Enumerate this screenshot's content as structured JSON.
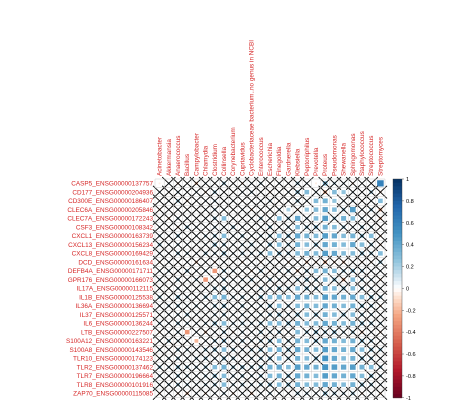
{
  "chart_data": {
    "type": "heatmap",
    "title": "",
    "columns": [
      "Acinetobacter",
      "Akkermansia",
      "Anaerococcus",
      "Bacillus",
      "Campylobacter",
      "Chlamydia",
      "Clostridium",
      "Collinsella",
      "Corynebacterium",
      "Cupriavidus",
      "Cyclobacteriaceae bacterium..no genus in NCBI",
      "Enterococcus",
      "Escherichia",
      "Finegoldia",
      "Gardnerella",
      "Klebsiella",
      "Peptoniphilus",
      "Prevotella",
      "Proteus",
      "Pseudomonas",
      "Shewanella",
      "Sphingomonas",
      "Staphylococcus",
      "Streptococcus",
      "Streptomyces"
    ],
    "rows": [
      "CASP5_ENSG00000137757",
      "CD177_ENSG00000204936",
      "CD300E_ENSG00000186407",
      "CLEC6A_ENSG00000205846",
      "CLEC7A_ENSG00000172243",
      "CSF3_ENSG00000108342",
      "CXCL1_ENSG00000163739",
      "CXCL13_ENSG00000156234",
      "CXCL8_ENSG00000169429",
      "DCD_ENSG00000161634",
      "DEFB4A_ENSG00000171711",
      "GPR176_ENSG00000166073",
      "IL17A_ENSG00000112115",
      "IL1B_ENSG00000125538",
      "IL36A_ENSG00000136694",
      "IL37_ENSG00000125571",
      "IL6_ENSG00000136244",
      "LTB_ENSG00000227507",
      "S100A12_ENSG00000163221",
      "S100A8_ENSG00000143546",
      "TLR10_ENSG00000174123",
      "TLR2_ENSG00000137462",
      "TLR7_ENSG00000196664",
      "TLR8_ENSG00000101916",
      "ZAP70_ENSG00000115085"
    ],
    "values": [
      [
        -0.05,
        0.1,
        -0.1,
        0.05,
        -0.15,
        0.1,
        -0.05,
        0.2,
        0.05,
        -0.1,
        0.1,
        0.15,
        -0.05,
        0.1,
        0.05,
        0.2,
        0.1,
        -0.05,
        0.3,
        0.15,
        0.1,
        -0.1,
        0.05,
        0.05,
        0.6
      ],
      [
        0.1,
        -0.05,
        0.15,
        0.05,
        0.1,
        -0.1,
        0.2,
        0.05,
        -0.05,
        0.1,
        0.15,
        0.05,
        -0.1,
        0.05,
        0.1,
        0.25,
        0.3,
        0.1,
        -0.2,
        0.3,
        0.25,
        0.1,
        0.05,
        0.2,
        -0.1
      ],
      [
        0.05,
        0.1,
        0.2,
        -0.1,
        0.05,
        0.1,
        0.15,
        0.05,
        0.1,
        -0.05,
        0.05,
        0.1,
        0.15,
        0.05,
        0.1,
        0.2,
        0.1,
        0.3,
        0.35,
        0.25,
        0.1,
        0.15,
        -0.05,
        0.1,
        0.3
      ],
      [
        -0.1,
        0.05,
        0.1,
        0.05,
        -0.05,
        0.1,
        0.15,
        0.1,
        0.05,
        0.1,
        -0.1,
        0.05,
        0.1,
        0.15,
        0.2,
        -0.1,
        0.25,
        0.3,
        0.4,
        0.3,
        0.2,
        0.45,
        0.1,
        0.2,
        -0.2
      ],
      [
        0.05,
        -0.1,
        0.15,
        0.1,
        0.05,
        0.1,
        0.2,
        0.3,
        0.1,
        0.05,
        0.1,
        0.2,
        0.1,
        0.3,
        0.2,
        0.4,
        0.15,
        0.3,
        0.45,
        0.2,
        0.35,
        0.3,
        0.15,
        0.1,
        -0.15
      ],
      [
        0.1,
        0.05,
        -0.1,
        0.2,
        0.1,
        0.05,
        0.15,
        0.1,
        0.2,
        0.1,
        0.05,
        0.1,
        0.2,
        0.1,
        0.15,
        0.3,
        0.2,
        0.25,
        0.35,
        0.3,
        0.2,
        0.1,
        0.2,
        0.15,
        0.05
      ],
      [
        0.15,
        0.1,
        0.2,
        0.05,
        0.1,
        0.15,
        0.2,
        0.3,
        0.1,
        0.2,
        0.1,
        0.15,
        0.2,
        0.3,
        0.25,
        0.4,
        0.35,
        0.3,
        0.45,
        0.4,
        0.3,
        0.35,
        0.25,
        0.3,
        -0.1
      ],
      [
        0.2,
        0.1,
        0.15,
        0.1,
        0.05,
        0.1,
        0.25,
        0.2,
        0.1,
        0.15,
        0.2,
        0.1,
        0.25,
        0.3,
        0.2,
        0.35,
        0.3,
        0.25,
        0.4,
        0.35,
        0.3,
        0.4,
        0.3,
        0.2,
        -0.1
      ],
      [
        0.1,
        0.05,
        0.2,
        0.15,
        0.1,
        0.2,
        0.15,
        0.25,
        0.1,
        0.2,
        0.15,
        0.2,
        0.3,
        0.25,
        0.2,
        0.3,
        0.35,
        0.3,
        0.45,
        0.4,
        0.3,
        0.3,
        0.25,
        0.2,
        0.3
      ],
      [
        -0.1,
        0.1,
        -0.05,
        0.1,
        -0.15,
        0.05,
        -0.1,
        0.1,
        -0.05,
        -0.1,
        0.05,
        -0.1,
        0.1,
        -0.05,
        -0.1,
        0.05,
        -0.15,
        -0.1,
        -0.2,
        -0.1,
        -0.15,
        -0.05,
        -0.1,
        -0.1,
        0.2
      ],
      [
        0.1,
        0.15,
        0.1,
        0.2,
        0.1,
        0.15,
        -0.3,
        0.2,
        0.15,
        0.1,
        -0.1,
        0.2,
        -0.1,
        0.15,
        0.2,
        -0.15,
        0.2,
        0.3,
        0.35,
        0.3,
        0.2,
        0.25,
        0.2,
        0.1,
        0.1
      ],
      [
        0.15,
        -0.1,
        0.2,
        0.1,
        0.15,
        -0.3,
        0.1,
        0.2,
        0.1,
        0.15,
        0.2,
        0.1,
        0.2,
        0.15,
        0.1,
        0.2,
        0.25,
        0.2,
        0.3,
        0.25,
        -0.2,
        0.3,
        0.2,
        0.15,
        -0.1
      ],
      [
        0.1,
        0.05,
        0.15,
        0.1,
        0.05,
        0.1,
        0.2,
        0.25,
        0.1,
        0.15,
        0.1,
        0.2,
        0.15,
        0.25,
        0.2,
        0.3,
        0.25,
        0.2,
        0.35,
        0.3,
        0.25,
        0.3,
        0.2,
        0.15,
        0.1
      ],
      [
        0.2,
        0.1,
        0.25,
        0.15,
        0.1,
        0.2,
        0.3,
        0.35,
        0.15,
        0.2,
        0.15,
        0.25,
        0.3,
        0.35,
        0.3,
        0.4,
        0.35,
        0.3,
        0.45,
        0.4,
        0.35,
        0.4,
        0.3,
        0.25,
        0.2
      ],
      [
        0.1,
        0.15,
        0.2,
        0.1,
        0.15,
        0.1,
        0.2,
        0.25,
        0.1,
        0.2,
        0.1,
        0.15,
        0.25,
        0.3,
        0.2,
        0.3,
        0.35,
        0.3,
        0.4,
        0.35,
        0.3,
        0.35,
        0.25,
        0.2,
        -0.1
      ],
      [
        0.05,
        0.1,
        0.15,
        0.2,
        0.1,
        0.05,
        0.15,
        0.2,
        0.1,
        0.15,
        0.1,
        0.15,
        0.2,
        0.25,
        0.15,
        0.25,
        0.3,
        0.25,
        0.35,
        0.3,
        0.25,
        0.3,
        0.2,
        0.15,
        0.05
      ],
      [
        0.15,
        0.1,
        0.2,
        0.15,
        0.1,
        0.15,
        0.25,
        0.3,
        0.15,
        0.2,
        0.15,
        0.2,
        0.3,
        0.3,
        0.25,
        0.35,
        0.3,
        0.3,
        0.4,
        0.35,
        0.3,
        0.35,
        0.25,
        0.2,
        0.15
      ],
      [
        -0.1,
        0.1,
        0.15,
        -0.3,
        0.1,
        -0.15,
        0.1,
        0.2,
        -0.1,
        0.15,
        0.1,
        0.2,
        0.15,
        0.2,
        0.1,
        0.3,
        0.2,
        0.25,
        0.2,
        0.25,
        0.15,
        0.2,
        -0.15,
        0.1,
        -0.1
      ],
      [
        0.1,
        0.2,
        0.15,
        0.1,
        -0.2,
        0.1,
        0.2,
        0.25,
        0.15,
        0.2,
        0.15,
        0.2,
        0.25,
        0.3,
        0.2,
        0.35,
        0.3,
        0.25,
        0.4,
        0.35,
        0.3,
        0.35,
        0.25,
        0.2,
        0.1
      ],
      [
        0.15,
        0.1,
        0.2,
        0.15,
        0.1,
        0.2,
        0.25,
        0.3,
        0.2,
        0.15,
        0.2,
        0.25,
        0.3,
        0.35,
        0.25,
        0.4,
        0.35,
        0.3,
        0.45,
        0.4,
        0.35,
        0.4,
        0.3,
        0.25,
        0.2
      ],
      [
        0.1,
        0.15,
        0.2,
        0.1,
        0.15,
        0.2,
        0.15,
        0.25,
        0.2,
        0.1,
        0.15,
        0.2,
        0.25,
        0.3,
        0.2,
        0.35,
        0.3,
        0.25,
        0.5,
        0.4,
        0.3,
        0.35,
        0.25,
        0.2,
        0.1
      ],
      [
        0.2,
        0.15,
        0.25,
        0.2,
        0.15,
        0.2,
        0.3,
        0.35,
        0.2,
        0.25,
        0.2,
        0.25,
        0.35,
        0.4,
        0.3,
        0.45,
        0.4,
        0.35,
        0.5,
        0.45,
        0.4,
        0.45,
        0.35,
        0.3,
        0.2
      ],
      [
        0.15,
        0.1,
        0.2,
        0.15,
        0.1,
        0.15,
        0.25,
        0.3,
        0.15,
        0.2,
        0.15,
        0.2,
        0.3,
        0.35,
        0.25,
        0.4,
        0.35,
        0.3,
        0.45,
        0.4,
        0.35,
        0.4,
        0.3,
        0.25,
        0.15
      ],
      [
        0.1,
        0.15,
        0.2,
        0.15,
        0.1,
        0.15,
        0.2,
        0.3,
        0.15,
        0.2,
        0.15,
        0.2,
        0.25,
        0.3,
        0.25,
        0.35,
        0.3,
        0.3,
        0.4,
        0.35,
        0.3,
        0.35,
        0.25,
        0.2,
        0.1
      ],
      [
        -0.1,
        0.05,
        -0.1,
        -0.15,
        0.1,
        -0.1,
        0.1,
        0.15,
        -0.1,
        0.1,
        -0.15,
        0.1,
        0.15,
        0.1,
        0.05,
        0.2,
        0.15,
        0.1,
        0.25,
        0.2,
        0.15,
        0.2,
        -0.1,
        0.1,
        -0.1
      ]
    ],
    "significant": [
      [
        0,
        1,
        1,
        1,
        1,
        1,
        1,
        1,
        1,
        1,
        1,
        1,
        1,
        1,
        1,
        1,
        1,
        0,
        1,
        1,
        1,
        1,
        1,
        1,
        0
      ],
      [
        1,
        1,
        1,
        1,
        1,
        1,
        1,
        1,
        1,
        1,
        1,
        1,
        1,
        1,
        1,
        1,
        0,
        1,
        1,
        0,
        0,
        1,
        1,
        1,
        1
      ],
      [
        1,
        1,
        1,
        1,
        1,
        1,
        1,
        1,
        1,
        1,
        1,
        1,
        1,
        1,
        1,
        1,
        1,
        0,
        0,
        0,
        1,
        1,
        1,
        1,
        0
      ],
      [
        1,
        1,
        1,
        1,
        1,
        1,
        1,
        1,
        1,
        1,
        1,
        1,
        1,
        1,
        0,
        1,
        0,
        0,
        0,
        0,
        1,
        0,
        1,
        1,
        1
      ],
      [
        1,
        1,
        1,
        1,
        1,
        1,
        1,
        0,
        1,
        1,
        1,
        1,
        1,
        0,
        1,
        0,
        1,
        0,
        0,
        1,
        0,
        0,
        1,
        1,
        1
      ],
      [
        1,
        1,
        1,
        1,
        1,
        1,
        1,
        1,
        1,
        1,
        1,
        1,
        1,
        1,
        1,
        0,
        1,
        1,
        0,
        0,
        1,
        1,
        1,
        1,
        1
      ],
      [
        1,
        1,
        1,
        1,
        1,
        1,
        1,
        0,
        1,
        1,
        1,
        1,
        1,
        0,
        1,
        0,
        0,
        0,
        0,
        0,
        0,
        0,
        1,
        0,
        1
      ],
      [
        1,
        1,
        1,
        1,
        1,
        1,
        1,
        1,
        1,
        1,
        1,
        1,
        1,
        0,
        1,
        0,
        0,
        1,
        0,
        0,
        0,
        0,
        0,
        1,
        1
      ],
      [
        1,
        1,
        1,
        1,
        1,
        1,
        1,
        1,
        1,
        1,
        1,
        1,
        0,
        1,
        1,
        0,
        0,
        0,
        0,
        0,
        0,
        0,
        1,
        1,
        0
      ],
      [
        1,
        1,
        1,
        1,
        1,
        1,
        1,
        1,
        1,
        1,
        1,
        1,
        1,
        1,
        1,
        1,
        1,
        1,
        1,
        1,
        1,
        1,
        1,
        1,
        1
      ],
      [
        1,
        1,
        1,
        1,
        1,
        1,
        0,
        1,
        1,
        1,
        1,
        1,
        1,
        1,
        1,
        1,
        1,
        0,
        0,
        0,
        1,
        1,
        1,
        1,
        1
      ],
      [
        1,
        1,
        1,
        1,
        1,
        0,
        1,
        1,
        1,
        1,
        1,
        1,
        1,
        1,
        1,
        1,
        1,
        1,
        0,
        1,
        1,
        0,
        1,
        1,
        1
      ],
      [
        1,
        1,
        1,
        1,
        1,
        1,
        1,
        1,
        1,
        1,
        1,
        1,
        1,
        1,
        1,
        0,
        1,
        1,
        0,
        0,
        1,
        0,
        1,
        1,
        1
      ],
      [
        1,
        1,
        1,
        1,
        1,
        1,
        0,
        0,
        1,
        1,
        1,
        1,
        0,
        0,
        0,
        0,
        0,
        0,
        0,
        0,
        0,
        0,
        0,
        1,
        1
      ],
      [
        1,
        1,
        1,
        1,
        1,
        1,
        1,
        1,
        1,
        1,
        1,
        1,
        1,
        0,
        1,
        0,
        0,
        0,
        0,
        0,
        0,
        0,
        1,
        1,
        1
      ],
      [
        1,
        1,
        1,
        1,
        1,
        1,
        1,
        1,
        1,
        1,
        1,
        1,
        1,
        1,
        1,
        1,
        0,
        1,
        0,
        0,
        1,
        0,
        1,
        1,
        1
      ],
      [
        1,
        1,
        1,
        1,
        1,
        1,
        1,
        0,
        1,
        1,
        1,
        1,
        0,
        0,
        1,
        0,
        0,
        0,
        0,
        0,
        0,
        0,
        1,
        1,
        1
      ],
      [
        1,
        1,
        1,
        0,
        1,
        1,
        1,
        1,
        1,
        1,
        1,
        1,
        1,
        1,
        1,
        0,
        1,
        1,
        1,
        1,
        1,
        1,
        1,
        1,
        1
      ],
      [
        1,
        1,
        1,
        1,
        0,
        1,
        1,
        1,
        1,
        1,
        1,
        1,
        1,
        0,
        1,
        0,
        0,
        1,
        0,
        0,
        0,
        0,
        1,
        1,
        1
      ],
      [
        1,
        1,
        1,
        1,
        1,
        1,
        1,
        0,
        1,
        1,
        1,
        1,
        0,
        0,
        1,
        0,
        0,
        0,
        0,
        0,
        0,
        0,
        0,
        1,
        1
      ],
      [
        1,
        1,
        1,
        1,
        1,
        1,
        1,
        1,
        1,
        1,
        1,
        1,
        1,
        0,
        1,
        0,
        0,
        1,
        0,
        0,
        0,
        0,
        1,
        1,
        1
      ],
      [
        1,
        1,
        1,
        1,
        1,
        1,
        0,
        0,
        1,
        1,
        1,
        1,
        0,
        0,
        0,
        0,
        0,
        0,
        0,
        0,
        0,
        0,
        0,
        0,
        1
      ],
      [
        1,
        1,
        1,
        1,
        1,
        1,
        1,
        0,
        1,
        1,
        1,
        1,
        0,
        0,
        1,
        0,
        0,
        0,
        0,
        0,
        0,
        0,
        0,
        1,
        1
      ],
      [
        1,
        1,
        1,
        1,
        1,
        1,
        1,
        0,
        1,
        1,
        1,
        1,
        1,
        0,
        1,
        0,
        0,
        0,
        0,
        0,
        0,
        0,
        1,
        1,
        1
      ],
      [
        1,
        1,
        1,
        1,
        1,
        1,
        1,
        1,
        1,
        1,
        1,
        1,
        1,
        1,
        1,
        1,
        1,
        1,
        1,
        1,
        1,
        1,
        1,
        1,
        1
      ]
    ],
    "colorbar": {
      "ticks": [
        "1",
        "0.8",
        "0.6",
        "0.4",
        "0.2",
        "0",
        "-0.2",
        "-0.4",
        "-0.6",
        "-0.8",
        "-1"
      ],
      "range": [
        -1,
        1
      ],
      "positive_color": "#053061",
      "negative_color": "#67001f"
    },
    "grid": true
  }
}
